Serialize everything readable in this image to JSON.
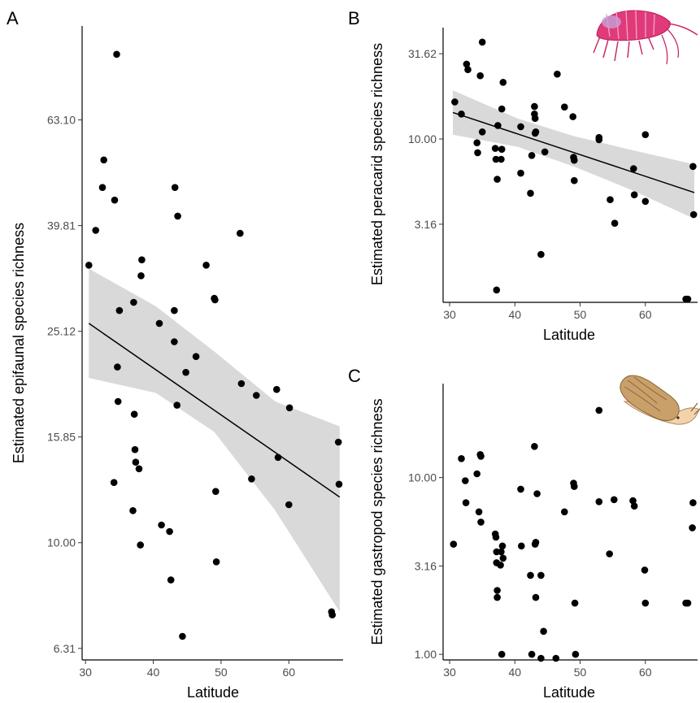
{
  "chart_data": [
    {
      "panel": "A",
      "type": "scatter",
      "xlabel": "Latitude",
      "ylabel": "Estimated epifaunal species richness",
      "y_scale": "log",
      "xlim": [
        29.5,
        68
      ],
      "ylim": [
        6.0,
        95
      ],
      "x_ticks": [
        30,
        40,
        50,
        60
      ],
      "y_ticks": [
        {
          "value": 6.31,
          "label": "6.31"
        },
        {
          "value": 10.0,
          "label": "10.00"
        },
        {
          "value": 15.85,
          "label": "15.85"
        },
        {
          "value": 25.12,
          "label": "25.12"
        },
        {
          "value": 39.81,
          "label": "39.81"
        },
        {
          "value": 63.1,
          "label": "63.10"
        }
      ],
      "points": [
        [
          30.5,
          33.5
        ],
        [
          31.5,
          39.0
        ],
        [
          32.5,
          47.0
        ],
        [
          32.7,
          53.0
        ],
        [
          34.3,
          44.5
        ],
        [
          34.6,
          84.0
        ],
        [
          34.7,
          21.5
        ],
        [
          34.8,
          18.5
        ],
        [
          34.2,
          13.0
        ],
        [
          35.0,
          27.5
        ],
        [
          37.0,
          11.5
        ],
        [
          37.1,
          28.5
        ],
        [
          37.2,
          17.5
        ],
        [
          37.3,
          15.0
        ],
        [
          37.4,
          14.2
        ],
        [
          37.9,
          13.8
        ],
        [
          38.2,
          32.0
        ],
        [
          38.3,
          34.3
        ],
        [
          38.1,
          9.9
        ],
        [
          40.9,
          26.0
        ],
        [
          41.2,
          10.8
        ],
        [
          42.4,
          10.5
        ],
        [
          42.6,
          8.5
        ],
        [
          43.1,
          27.5
        ],
        [
          43.1,
          24.0
        ],
        [
          43.2,
          47.0
        ],
        [
          43.5,
          18.2
        ],
        [
          43.6,
          41.5
        ],
        [
          44.3,
          6.65
        ],
        [
          44.8,
          21.0
        ],
        [
          46.3,
          22.5
        ],
        [
          47.8,
          33.5
        ],
        [
          49.0,
          29.0
        ],
        [
          49.1,
          28.8
        ],
        [
          49.2,
          12.5
        ],
        [
          49.3,
          9.2
        ],
        [
          52.8,
          38.5
        ],
        [
          53.0,
          20.0
        ],
        [
          54.5,
          13.2
        ],
        [
          55.2,
          19.0
        ],
        [
          58.2,
          19.5
        ],
        [
          58.4,
          14.5
        ],
        [
          60.0,
          11.8
        ],
        [
          60.1,
          18.0
        ],
        [
          66.3,
          7.4
        ],
        [
          66.4,
          7.3
        ],
        [
          67.3,
          15.5
        ],
        [
          67.4,
          12.9
        ]
      ],
      "fit": {
        "x": [
          30.5,
          67.5
        ],
        "y": [
          26.0,
          12.2
        ]
      },
      "ci_band": {
        "x": [
          30.5,
          40.4,
          49.0,
          58.0,
          67.5
        ],
        "lower": [
          20.5,
          19.2,
          16.2,
          11.5,
          7.4
        ],
        "upper": [
          33.0,
          28.0,
          23.0,
          18.5,
          16.6
        ]
      }
    },
    {
      "panel": "B",
      "type": "scatter",
      "xlabel": "Latitude",
      "ylabel": "Estimated peracarid species richness",
      "y_scale": "log",
      "xlim": [
        29.0,
        68
      ],
      "ylim": [
        1.1,
        45
      ],
      "x_ticks": [
        30,
        40,
        50,
        60
      ],
      "y_ticks": [
        {
          "value": 3.16,
          "label": "3.16"
        },
        {
          "value": 10.0,
          "label": "10.00"
        },
        {
          "value": 31.62,
          "label": "31.62"
        }
      ],
      "points": [
        [
          30.8,
          16.5
        ],
        [
          31.8,
          14.0
        ],
        [
          32.6,
          27.5
        ],
        [
          32.8,
          25.5
        ],
        [
          34.2,
          9.5
        ],
        [
          34.3,
          8.3
        ],
        [
          34.7,
          23.5
        ],
        [
          35.0,
          37.0
        ],
        [
          35.0,
          11.0
        ],
        [
          37.0,
          8.8
        ],
        [
          37.1,
          7.6
        ],
        [
          37.2,
          1.3
        ],
        [
          37.3,
          5.8
        ],
        [
          37.4,
          12.0
        ],
        [
          37.9,
          7.6
        ],
        [
          38.0,
          8.7
        ],
        [
          38.0,
          15.0
        ],
        [
          38.2,
          21.5
        ],
        [
          40.9,
          11.8
        ],
        [
          40.9,
          6.3
        ],
        [
          42.4,
          4.8
        ],
        [
          42.6,
          8.0
        ],
        [
          43.0,
          15.5
        ],
        [
          43.0,
          14.0
        ],
        [
          43.1,
          13.2
        ],
        [
          43.1,
          10.8
        ],
        [
          43.2,
          11.0
        ],
        [
          44.0,
          2.1
        ],
        [
          44.6,
          8.4
        ],
        [
          46.5,
          24.0
        ],
        [
          47.6,
          15.4
        ],
        [
          48.9,
          13.5
        ],
        [
          49.0,
          7.8
        ],
        [
          49.1,
          7.5
        ],
        [
          49.1,
          5.7
        ],
        [
          52.9,
          10.2
        ],
        [
          52.9,
          9.9
        ],
        [
          54.6,
          4.4
        ],
        [
          55.3,
          3.2
        ],
        [
          58.2,
          6.7
        ],
        [
          58.3,
          4.7
        ],
        [
          60.0,
          10.6
        ],
        [
          60.0,
          4.3
        ],
        [
          66.2,
          1.15
        ],
        [
          66.5,
          1.15
        ],
        [
          67.3,
          6.9
        ],
        [
          67.4,
          3.6
        ]
      ],
      "fit": {
        "x": [
          30.5,
          67.5
        ],
        "y": [
          14.3,
          4.85
        ]
      },
      "ci_band": {
        "x": [
          30.5,
          40.4,
          49.0,
          58.0,
          67.5
        ],
        "lower": [
          10.6,
          9.0,
          6.9,
          5.0,
          3.4
        ],
        "upper": [
          19.3,
          13.2,
          10.4,
          8.6,
          7.1
        ]
      }
    },
    {
      "panel": "C",
      "type": "scatter",
      "xlabel": "Latitude",
      "ylabel": "Estimated gastropod species richness",
      "y_scale": "log",
      "xlim": [
        29.0,
        68
      ],
      "ylim": [
        0.93,
        34
      ],
      "x_ticks": [
        30,
        40,
        50,
        60
      ],
      "y_ticks": [
        {
          "value": 1.0,
          "label": "1.00"
        },
        {
          "value": 3.16,
          "label": "3.16"
        },
        {
          "value": 10.0,
          "label": "10.00"
        }
      ],
      "points": [
        [
          30.6,
          4.2
        ],
        [
          31.8,
          12.8
        ],
        [
          32.4,
          9.6
        ],
        [
          32.5,
          7.2
        ],
        [
          34.2,
          10.5
        ],
        [
          34.5,
          6.4
        ],
        [
          34.7,
          13.5
        ],
        [
          34.8,
          13.2
        ],
        [
          34.8,
          5.6
        ],
        [
          37.0,
          4.8
        ],
        [
          37.1,
          4.6
        ],
        [
          37.2,
          3.8
        ],
        [
          37.2,
          3.3
        ],
        [
          37.3,
          2.3
        ],
        [
          37.3,
          2.1
        ],
        [
          37.8,
          3.2
        ],
        [
          37.9,
          3.8
        ],
        [
          38.0,
          1.0
        ],
        [
          38.1,
          4.1
        ],
        [
          38.2,
          3.5
        ],
        [
          40.9,
          8.6
        ],
        [
          41.0,
          4.1
        ],
        [
          42.4,
          2.8
        ],
        [
          42.6,
          1.0
        ],
        [
          43.0,
          15.0
        ],
        [
          43.1,
          4.2
        ],
        [
          43.2,
          2.1
        ],
        [
          43.2,
          4.3
        ],
        [
          43.4,
          8.1
        ],
        [
          44.0,
          0.95
        ],
        [
          44.0,
          2.8
        ],
        [
          44.4,
          1.35
        ],
        [
          46.3,
          0.95
        ],
        [
          47.6,
          6.4
        ],
        [
          49.0,
          9.3
        ],
        [
          49.1,
          8.9
        ],
        [
          49.2,
          1.95
        ],
        [
          49.3,
          1.0
        ],
        [
          52.9,
          24.0
        ],
        [
          52.9,
          7.3
        ],
        [
          54.5,
          3.7
        ],
        [
          55.2,
          7.5
        ],
        [
          58.1,
          7.4
        ],
        [
          58.3,
          6.9
        ],
        [
          59.9,
          3.0
        ],
        [
          60.0,
          1.95
        ],
        [
          66.2,
          1.95
        ],
        [
          66.5,
          1.95
        ],
        [
          67.2,
          5.2
        ],
        [
          67.3,
          7.2
        ]
      ]
    }
  ]
}
